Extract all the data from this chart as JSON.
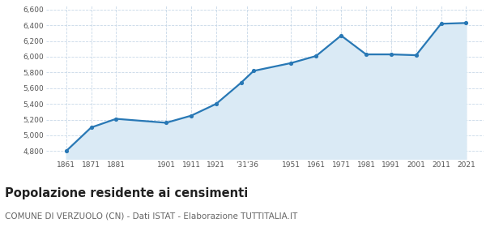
{
  "years": [
    1861,
    1871,
    1881,
    1901,
    1911,
    1921,
    1931,
    1936,
    1951,
    1961,
    1971,
    1981,
    1991,
    2001,
    2011,
    2021
  ],
  "population": [
    4800,
    5100,
    5210,
    5160,
    5250,
    5400,
    5670,
    5820,
    5920,
    6010,
    6270,
    6030,
    6030,
    6020,
    6420,
    6430
  ],
  "line_color": "#2878b5",
  "fill_color": "#daeaf5",
  "marker_color": "#2878b5",
  "background_color": "#ffffff",
  "plot_bg_color": "#ffffff",
  "grid_color": "#c8d8e8",
  "ylim": [
    4700,
    6650
  ],
  "yticks": [
    4800,
    5000,
    5200,
    5400,
    5600,
    5800,
    6000,
    6200,
    6400,
    6600
  ],
  "xlim_left": 1853,
  "xlim_right": 2028,
  "title": "Popolazione residente ai censimenti",
  "subtitle": "COMUNE DI VERZUOLO (CN) - Dati ISTAT - Elaborazione TUTTITALIA.IT",
  "title_fontsize": 10.5,
  "subtitle_fontsize": 7.5
}
